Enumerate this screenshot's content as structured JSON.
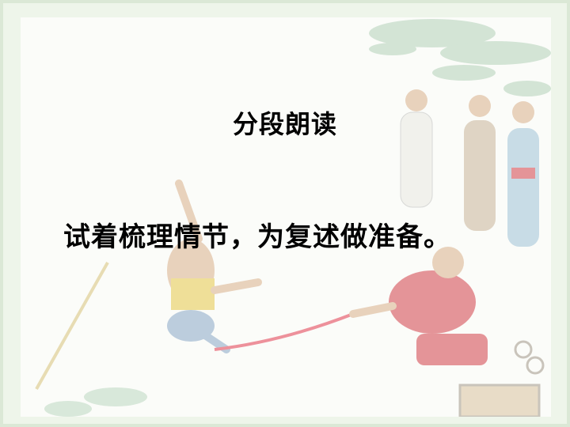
{
  "slide": {
    "title": "分段朗读",
    "subtitle": "试着梳理情节，为复述做准备。"
  },
  "illustration": {
    "icon": "ancient-scene-illustration",
    "colors": {
      "figure_yellow": "#e6c84a",
      "figure_red": "#d2404a",
      "rope_red": "#e33a4f",
      "robe_blue": "#9fc3d8",
      "foliage_green": "#9fc6a8",
      "skin": "#d9b08c"
    }
  }
}
